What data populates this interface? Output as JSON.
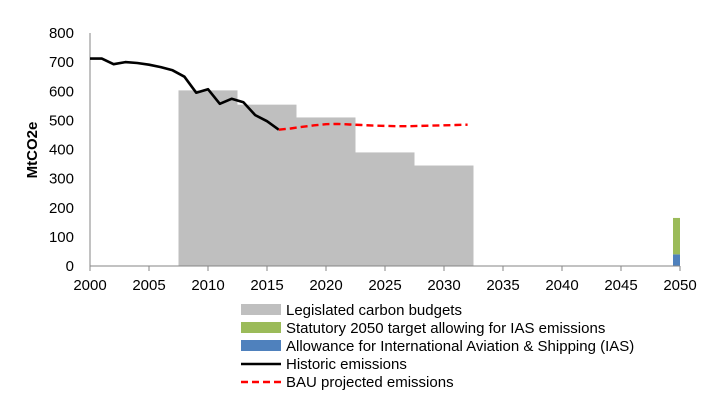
{
  "chart_data": {
    "type": "bar",
    "ylabel": "MtCO2e",
    "xlabel": "",
    "xlim": [
      2000,
      2050
    ],
    "ylim": [
      0,
      800
    ],
    "y_ticks": [
      "0",
      "100",
      "200",
      "300",
      "400",
      "500",
      "600",
      "700",
      "800"
    ],
    "x_ticks": [
      "2000",
      "2005",
      "2010",
      "2015",
      "2020",
      "2025",
      "2030",
      "2035",
      "2040",
      "2045",
      "2050"
    ],
    "grid": false,
    "legend_position": "bottom",
    "colors": {
      "budgets": "#bfbfbf",
      "statutory": "#9bbb59",
      "ias": "#4f81bd",
      "historic": "#000000",
      "bau": "#ff0000"
    },
    "series": [
      {
        "name": "Legislated carbon budgets",
        "kind": "step-bars",
        "periods": [
          {
            "start": 2007.5,
            "end": 2012.5,
            "value": 603
          },
          {
            "start": 2012.5,
            "end": 2017.5,
            "value": 554
          },
          {
            "start": 2017.5,
            "end": 2022.5,
            "value": 510
          },
          {
            "start": 2022.5,
            "end": 2027.5,
            "value": 390
          },
          {
            "start": 2027.5,
            "end": 2032.5,
            "value": 345
          }
        ]
      },
      {
        "name": "Statutory 2050 target allowing for IAS emissions",
        "kind": "stacked-bar",
        "x": 2050,
        "value": 125
      },
      {
        "name": "Allowance for International Aviation & Shipping (IAS)",
        "kind": "stacked-bar",
        "x": 2050,
        "value": 40
      },
      {
        "name": "Historic emissions",
        "kind": "line",
        "x": [
          2000,
          2001,
          2002,
          2003,
          2004,
          2005,
          2006,
          2007,
          2008,
          2009,
          2010,
          2011,
          2012,
          2013,
          2014,
          2015,
          2016
        ],
        "y": [
          712,
          712,
          693,
          700,
          697,
          691,
          683,
          672,
          650,
          595,
          607,
          557,
          574,
          562,
          518,
          497,
          468
        ]
      },
      {
        "name": "BAU projected emissions",
        "kind": "dashed-line",
        "x": [
          2016,
          2017,
          2018,
          2019,
          2020,
          2021,
          2022,
          2023,
          2024,
          2025,
          2026,
          2027,
          2028,
          2029,
          2030,
          2031,
          2032
        ],
        "y": [
          468,
          472,
          478,
          483,
          487,
          488,
          486,
          484,
          482,
          481,
          480,
          480,
          481,
          482,
          483,
          484,
          485
        ]
      }
    ]
  }
}
